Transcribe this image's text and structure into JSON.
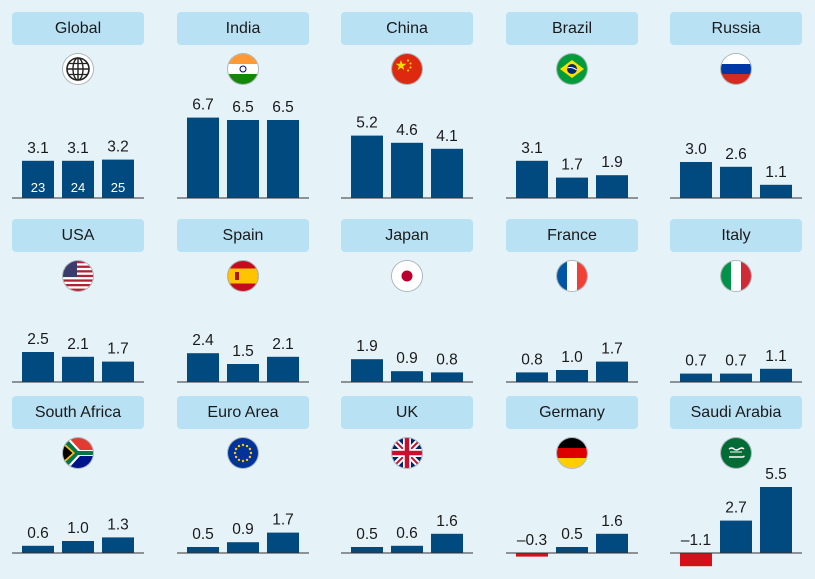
{
  "colors": {
    "positive": "#004a7f",
    "negative": "#d0121b",
    "tag": "#b9e1f4",
    "background": "#e5f2f8"
  },
  "chart_data": [
    {
      "type": "bar",
      "title": "Global",
      "flag": "globe-icon",
      "values": [
        3.1,
        3.1,
        3.2
      ],
      "value_labels": [
        "3.1",
        "3.1",
        "3.2"
      ],
      "inner_labels": [
        "23",
        "24",
        "25"
      ]
    },
    {
      "type": "bar",
      "title": "India",
      "flag": "india-flag-icon",
      "values": [
        6.7,
        6.5,
        6.5
      ],
      "value_labels": [
        "6.7",
        "6.5",
        "6.5"
      ]
    },
    {
      "type": "bar",
      "title": "China",
      "flag": "china-flag-icon",
      "values": [
        5.2,
        4.6,
        4.1
      ],
      "value_labels": [
        "5.2",
        "4.6",
        "4.1"
      ]
    },
    {
      "type": "bar",
      "title": "Brazil",
      "flag": "brazil-flag-icon",
      "values": [
        3.1,
        1.7,
        1.9
      ],
      "value_labels": [
        "3.1",
        "1.7",
        "1.9"
      ]
    },
    {
      "type": "bar",
      "title": "Russia",
      "flag": "russia-flag-icon",
      "values": [
        3.0,
        2.6,
        1.1
      ],
      "value_labels": [
        "3.0",
        "2.6",
        "1.1"
      ]
    },
    {
      "type": "bar",
      "title": "USA",
      "flag": "usa-flag-icon",
      "values": [
        2.5,
        2.1,
        1.7
      ],
      "value_labels": [
        "2.5",
        "2.1",
        "1.7"
      ]
    },
    {
      "type": "bar",
      "title": "Spain",
      "flag": "spain-flag-icon",
      "values": [
        2.4,
        1.5,
        2.1
      ],
      "value_labels": [
        "2.4",
        "1.5",
        "2.1"
      ]
    },
    {
      "type": "bar",
      "title": "Japan",
      "flag": "japan-flag-icon",
      "values": [
        1.9,
        0.9,
        0.8
      ],
      "value_labels": [
        "1.9",
        "0.9",
        "0.8"
      ]
    },
    {
      "type": "bar",
      "title": "France",
      "flag": "france-flag-icon",
      "values": [
        0.8,
        1.0,
        1.7
      ],
      "value_labels": [
        "0.8",
        "1.0",
        "1.7"
      ]
    },
    {
      "type": "bar",
      "title": "Italy",
      "flag": "italy-flag-icon",
      "values": [
        0.7,
        0.7,
        1.1
      ],
      "value_labels": [
        "0.7",
        "0.7",
        "1.1"
      ]
    },
    {
      "type": "bar",
      "title": "South Africa",
      "flag": "south-africa-flag-icon",
      "values": [
        0.6,
        1.0,
        1.3
      ],
      "value_labels": [
        "0.6",
        "1.0",
        "1.3"
      ]
    },
    {
      "type": "bar",
      "title": "Euro Area",
      "flag": "eu-flag-icon",
      "values": [
        0.5,
        0.9,
        1.7
      ],
      "value_labels": [
        "0.5",
        "0.9",
        "1.7"
      ]
    },
    {
      "type": "bar",
      "title": "UK",
      "flag": "uk-flag-icon",
      "values": [
        0.5,
        0.6,
        1.6
      ],
      "value_labels": [
        "0.5",
        "0.6",
        "1.6"
      ]
    },
    {
      "type": "bar",
      "title": "Germany",
      "flag": "germany-flag-icon",
      "values": [
        -0.3,
        0.5,
        1.6
      ],
      "value_labels": [
        "–0.3",
        "0.5",
        "1.6"
      ]
    },
    {
      "type": "bar",
      "title": "Saudi Arabia",
      "flag": "saudi-flag-icon",
      "values": [
        -1.1,
        2.7,
        5.5
      ],
      "value_labels": [
        "–1.1",
        "2.7",
        "5.5"
      ]
    }
  ]
}
